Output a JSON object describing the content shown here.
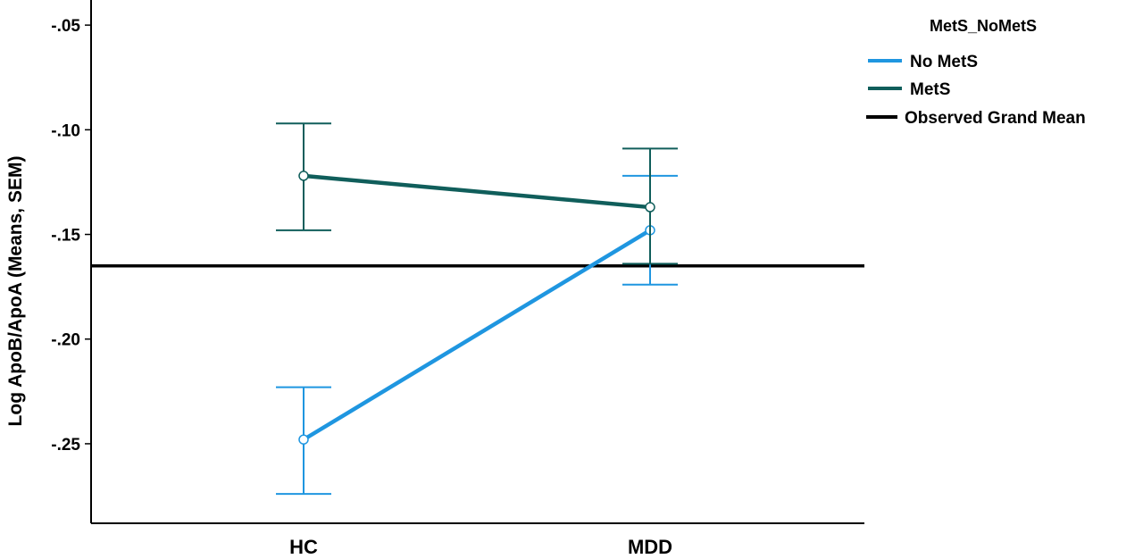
{
  "chart_data": {
    "type": "line",
    "title": "",
    "xlabel": "",
    "ylabel": "Log ApoB/ApoA (Means, SEM)",
    "categories": [
      "HC",
      "MDD"
    ],
    "ylim": [
      -0.288,
      -0.038
    ],
    "yticks": [
      -0.05,
      -0.1,
      -0.15,
      -0.2,
      -0.25
    ],
    "ytick_labels": [
      "-.05",
      "-.10",
      "-.15",
      "-.20",
      "-.25"
    ],
    "grid": false,
    "legend": {
      "title": "MetS_NoMetS",
      "placement": "top-right",
      "entries": [
        "No MetS",
        "MetS",
        "Observed Grand Mean"
      ]
    },
    "series": [
      {
        "name": "No MetS",
        "color": "#1f96e0",
        "values": [
          -0.248,
          -0.148
        ],
        "error_low": [
          -0.274,
          -0.174
        ],
        "error_high": [
          -0.223,
          -0.122
        ]
      },
      {
        "name": "MetS",
        "color": "#105e5b",
        "values": [
          -0.122,
          -0.137
        ],
        "error_low": [
          -0.148,
          -0.164
        ],
        "error_high": [
          -0.097,
          -0.109
        ]
      }
    ],
    "reference_line": {
      "name": "Observed Grand Mean",
      "value": -0.165,
      "color": "#000000"
    }
  }
}
